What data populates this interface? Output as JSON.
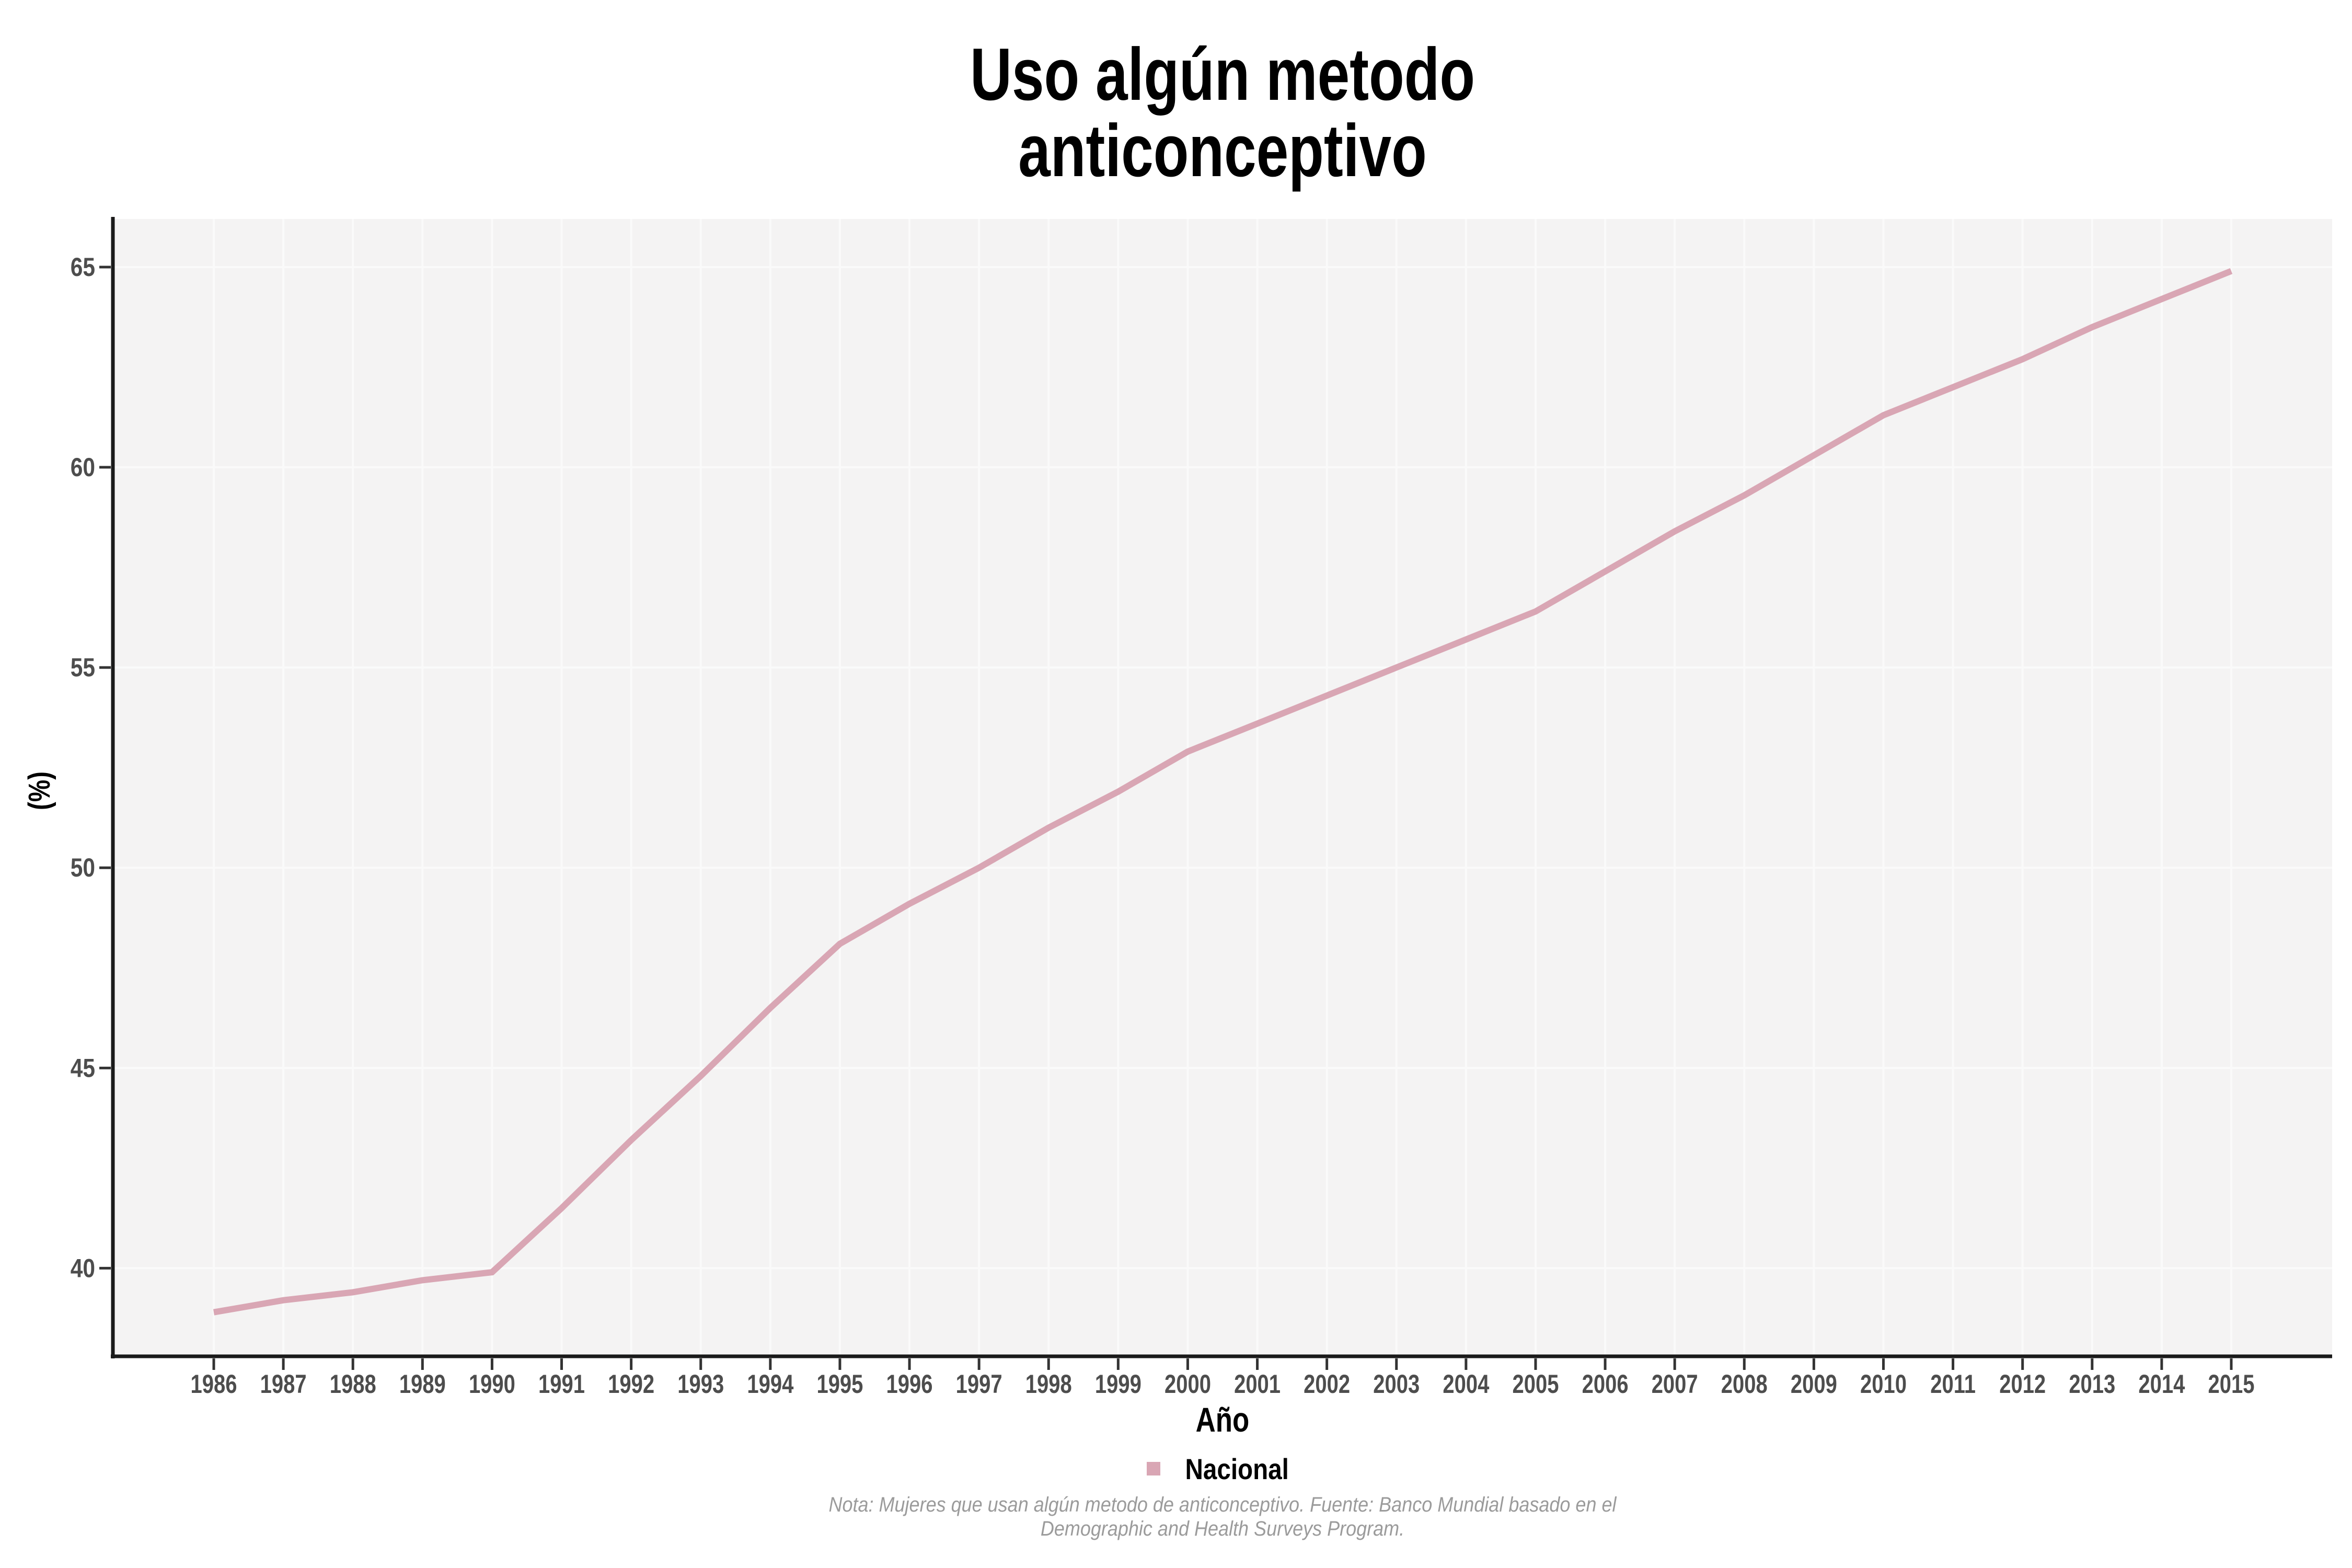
{
  "chart_data": {
    "type": "line",
    "title": "Uso algún metodo anticonceptivo",
    "title_line1": "Uso algún metodo",
    "title_line2": "anticonceptivo",
    "xlabel": "Año",
    "ylabel": "(%)",
    "categories": [
      1986,
      1987,
      1988,
      1989,
      1990,
      1991,
      1992,
      1993,
      1994,
      1995,
      1996,
      1997,
      1998,
      1999,
      2000,
      2001,
      2002,
      2003,
      2004,
      2005,
      2006,
      2007,
      2008,
      2009,
      2010,
      2011,
      2012,
      2013,
      2014,
      2015
    ],
    "series": [
      {
        "name": "Nacional",
        "color": "#D9A6B4",
        "values": [
          38.9,
          39.2,
          39.4,
          39.7,
          39.9,
          41.5,
          43.2,
          44.8,
          46.5,
          48.1,
          49.1,
          50.0,
          51.0,
          51.9,
          52.9,
          53.6,
          54.3,
          55.0,
          55.7,
          56.4,
          57.4,
          58.4,
          59.3,
          60.3,
          61.3,
          62.0,
          62.7,
          63.5,
          64.2,
          64.9
        ]
      }
    ],
    "y_ticks": [
      40,
      45,
      50,
      55,
      60,
      65
    ],
    "xlim": [
      1984.55,
      2016.45
    ],
    "ylim": [
      37.8,
      66.2
    ],
    "grid": true,
    "legend_position": "bottom",
    "note_line1": "Nota: Mujeres que usan algún metodo de anticonceptivo. Fuente: Banco Mundial basado en el",
    "note_line2": "Demographic and Health Surveys Program.",
    "colors": {
      "line": "#D9A6B4",
      "panel_background": "#F4F3F3",
      "gridline": "#FAFAFA",
      "axis_line": "#1A1A1A",
      "tick_mark": "#333333",
      "tick_text": "#4D4D4D",
      "title_text": "#000000",
      "note_text": "#9B9B9B"
    },
    "layout": {
      "l": 216,
      "t": 419,
      "r": 4462,
      "b": 2595
    }
  }
}
